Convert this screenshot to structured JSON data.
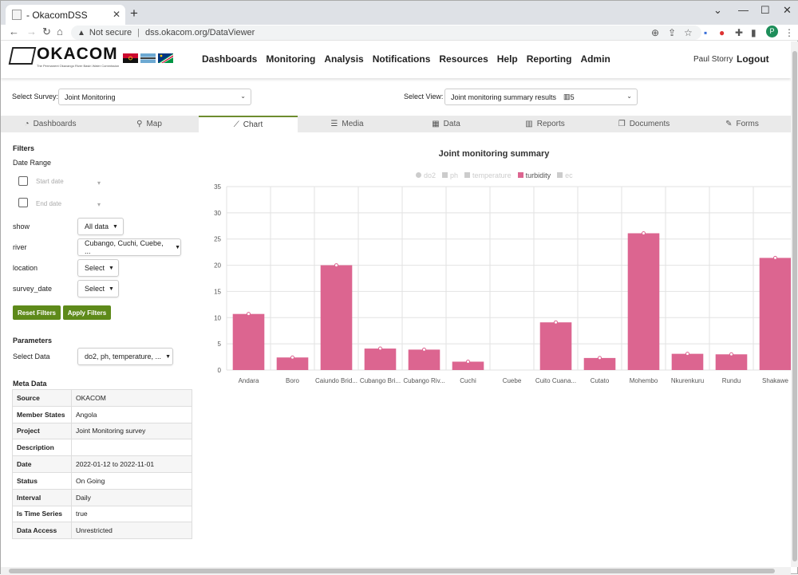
{
  "browser": {
    "tab_title": "- OkacomDSS",
    "close_glyph": "✕",
    "new_tab_glyph": "+",
    "not_secure": "Not secure",
    "url": "dss.okacom.org/DataViewer",
    "profile_initial": "P"
  },
  "header": {
    "logo_text": "OKACOM",
    "logo_subtitle": "The Permanent Okavango River Basin Water Commission",
    "nav": [
      "Dashboards",
      "Monitoring",
      "Analysis",
      "Notifications",
      "Resources",
      "Help",
      "Reporting",
      "Admin"
    ],
    "user": "Paul Storry",
    "logout": "Logout"
  },
  "selectors": {
    "survey_label": "Select Survey:",
    "survey_value": "Joint Monitoring",
    "view_label": "Select View:",
    "view_value": "Joint monitoring summary results",
    "view_count": "5"
  },
  "tabs": [
    {
      "label": "Dashboards",
      "icon": "dashboard-icon",
      "glyph": "◔"
    },
    {
      "label": "Map",
      "icon": "map-marker-icon",
      "glyph": "⚲"
    },
    {
      "label": "Chart",
      "icon": "line-chart-icon",
      "glyph": "⟋"
    },
    {
      "label": "Media",
      "icon": "list-icon",
      "glyph": "☰"
    },
    {
      "label": "Data",
      "icon": "table-icon",
      "glyph": "▦"
    },
    {
      "label": "Reports",
      "icon": "bar-chart-icon",
      "glyph": "▥"
    },
    {
      "label": "Documents",
      "icon": "documents-icon",
      "glyph": "❐"
    },
    {
      "label": "Forms",
      "icon": "edit-icon",
      "glyph": "✎"
    }
  ],
  "active_tab": "Chart",
  "filters": {
    "heading": "Filters",
    "date_range": "Date Range",
    "start_placeholder": "Start date",
    "end_placeholder": "End date",
    "rows": [
      {
        "label": "show",
        "value": "All data"
      },
      {
        "label": "river",
        "value": "Cubango, Cuchi, Cuebe, ..."
      },
      {
        "label": "location",
        "value": "Select"
      },
      {
        "label": "survey_date",
        "value": "Select"
      }
    ],
    "reset": "Reset Filters",
    "apply": "Apply Filters"
  },
  "parameters": {
    "heading": "Parameters",
    "select_label": "Select Data",
    "select_value": "do2, ph, temperature, ..."
  },
  "meta": {
    "heading": "Meta Data",
    "rows": [
      {
        "k": "Source",
        "v": "OKACOM"
      },
      {
        "k": "Member States",
        "v": "Angola"
      },
      {
        "k": "Project",
        "v": "Joint Monitoring survey"
      },
      {
        "k": "Description",
        "v": ""
      },
      {
        "k": "Date",
        "v": "2022-01-12 to 2022-11-01"
      },
      {
        "k": "Status",
        "v": "On Going"
      },
      {
        "k": "Interval",
        "v": "Daily"
      },
      {
        "k": "Is Time Series",
        "v": "true"
      },
      {
        "k": "Data Access",
        "v": "Unrestricted"
      }
    ]
  },
  "colors": {
    "accent_green": "#5e8a1a",
    "bar": "#dc6590",
    "legend_inactive": "#cccccc"
  },
  "chart_data": {
    "type": "bar",
    "title": "Joint monitoring summary",
    "legend": [
      {
        "name": "do2",
        "active": false
      },
      {
        "name": "ph",
        "active": false
      },
      {
        "name": "temperature",
        "active": false
      },
      {
        "name": "turbidity",
        "active": true
      },
      {
        "name": "ec",
        "active": false
      }
    ],
    "categories": [
      "Andara",
      "Boro",
      "Caiundo Brid...",
      "Cubango Bri...",
      "Cubango Riv...",
      "Cuchi",
      "Cuebe",
      "Cuito Cuana...",
      "Cutato",
      "Mohembo",
      "Nkurenkuru",
      "Rundu",
      "Shakawe"
    ],
    "series": [
      {
        "name": "turbidity",
        "values": [
          10.7,
          2.4,
          20.0,
          4.1,
          3.9,
          1.6,
          null,
          9.1,
          2.3,
          26.1,
          3.1,
          3.0,
          21.4
        ]
      }
    ],
    "ylim": [
      0,
      35
    ],
    "yticks": [
      0,
      5,
      10,
      15,
      20,
      25,
      30,
      35
    ],
    "grid": true,
    "legend_position": "top-center"
  }
}
